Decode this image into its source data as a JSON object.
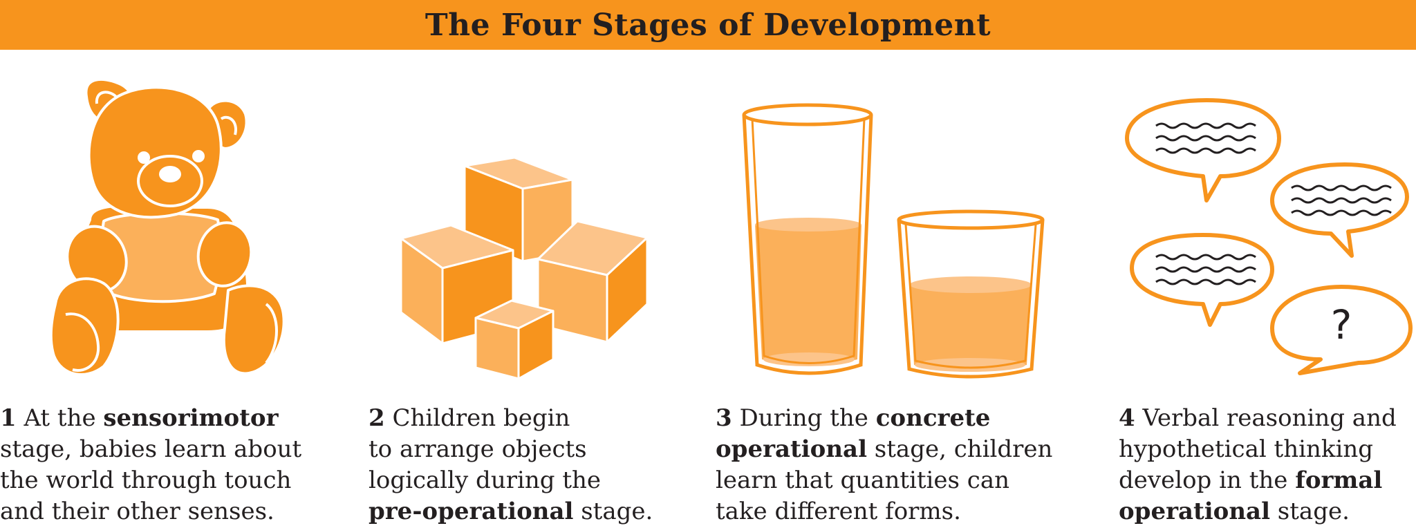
{
  "title": "The Four Stages of Development",
  "colors": {
    "accent": "#f7941d",
    "light": "#fbb05a",
    "pale": "#fcc48a",
    "text": "#231f20"
  },
  "stages": [
    {
      "number": "1",
      "icon": "teddy-bear-icon",
      "lines": [
        [
          {
            "t": " At the "
          },
          {
            "t": "sensorimotor",
            "b": true
          }
        ],
        [
          {
            "t": "stage, babies learn about"
          }
        ],
        [
          {
            "t": "the world through touch"
          }
        ],
        [
          {
            "t": "and their other senses."
          }
        ]
      ]
    },
    {
      "number": "2",
      "icon": "blocks-icon",
      "lines": [
        [
          {
            "t": " Children begin"
          }
        ],
        [
          {
            "t": "to arrange objects"
          }
        ],
        [
          {
            "t": "logically during the"
          }
        ],
        [
          {
            "t": "pre-operational",
            "b": true
          },
          {
            "t": " stage."
          }
        ]
      ]
    },
    {
      "number": "3",
      "icon": "glasses-icon",
      "lines": [
        [
          {
            "t": " During the "
          },
          {
            "t": "concrete",
            "b": true
          }
        ],
        [
          {
            "t": "operational",
            "b": true
          },
          {
            "t": " stage, children"
          }
        ],
        [
          {
            "t": "learn that quantities can"
          }
        ],
        [
          {
            "t": "take different forms."
          }
        ]
      ]
    },
    {
      "number": "4",
      "icon": "speech-bubbles-icon",
      "question_mark": "?",
      "lines": [
        [
          {
            "t": " Verbal reasoning and"
          }
        ],
        [
          {
            "t": "hypothetical thinking"
          }
        ],
        [
          {
            "t": "develop in the "
          },
          {
            "t": "formal",
            "b": true
          }
        ],
        [
          {
            "t": "operational",
            "b": true
          },
          {
            "t": " stage."
          }
        ]
      ]
    }
  ]
}
